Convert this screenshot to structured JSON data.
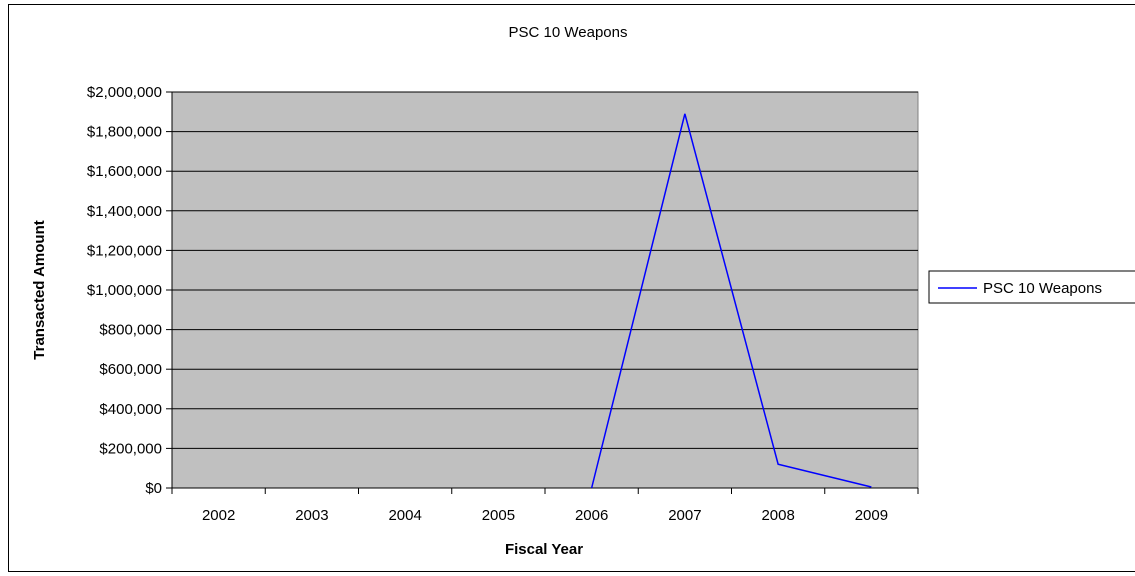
{
  "chart_data": {
    "type": "line",
    "title": "PSC 10 Weapons",
    "xlabel": "Fiscal Year",
    "ylabel": "Transacted Amount",
    "categories": [
      "2002",
      "2003",
      "2004",
      "2005",
      "2006",
      "2007",
      "2008",
      "2009"
    ],
    "series": [
      {
        "name": "PSC 10 Weapons",
        "color": "#0000ff",
        "values": [
          null,
          null,
          null,
          null,
          0,
          1890000,
          120000,
          5000
        ]
      }
    ],
    "ylim": [
      0,
      2000000
    ],
    "yticks": [
      0,
      200000,
      400000,
      600000,
      800000,
      1000000,
      1200000,
      1400000,
      1600000,
      1800000,
      2000000
    ],
    "ytick_labels": [
      "$0",
      "$200,000",
      "$400,000",
      "$600,000",
      "$800,000",
      "$1,000,000",
      "$1,200,000",
      "$1,400,000",
      "$1,600,000",
      "$1,800,000",
      "$2,000,000"
    ],
    "grid": true,
    "plot_background": "#c0c0c0",
    "legend_position": "right"
  }
}
